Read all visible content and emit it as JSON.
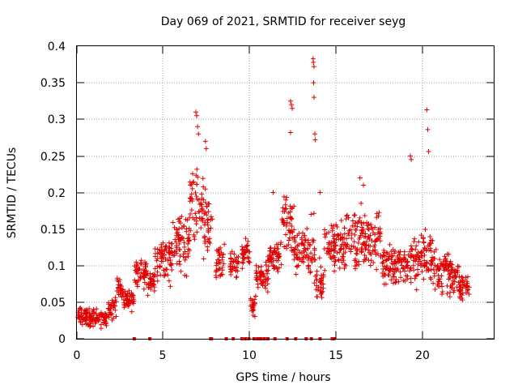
{
  "chart_data": {
    "type": "scatter",
    "title": "Day 069 of 2021, SRMTID for receiver seyg",
    "xlabel": "GPS time / hours",
    "ylabel": "SRMTID / TECUs",
    "xlim": [
      0,
      24
    ],
    "ylim": [
      0,
      0.4
    ],
    "xticks": [
      "0",
      "5",
      "10",
      "15",
      "20"
    ],
    "xtick_values": [
      0,
      5,
      10,
      15,
      20
    ],
    "yticks": [
      "0",
      "0.05",
      "0.1",
      "0.15",
      "0.2",
      "0.25",
      "0.3",
      "0.35",
      "0.4"
    ],
    "ytick_values": [
      0,
      0.05,
      0.1,
      0.15,
      0.2,
      0.25,
      0.3,
      0.35,
      0.4
    ],
    "grid": true,
    "marker": "plus",
    "color": "#e00000",
    "bands": [
      {
        "x0": 0.05,
        "x1": 1.8,
        "lo": 0.012,
        "hi": 0.045
      },
      {
        "x0": 1.8,
        "x1": 2.3,
        "lo": 0.02,
        "hi": 0.06
      },
      {
        "x0": 2.3,
        "x1": 2.7,
        "lo": 0.045,
        "hi": 0.09
      },
      {
        "x0": 2.7,
        "x1": 3.3,
        "lo": 0.035,
        "hi": 0.07
      },
      {
        "x0": 3.3,
        "x1": 4.0,
        "lo": 0.06,
        "hi": 0.12
      },
      {
        "x0": 4.0,
        "x1": 4.5,
        "lo": 0.055,
        "hi": 0.1
      },
      {
        "x0": 4.5,
        "x1": 5.5,
        "lo": 0.07,
        "hi": 0.145
      },
      {
        "x0": 5.5,
        "x1": 6.5,
        "lo": 0.08,
        "hi": 0.19
      },
      {
        "x0": 6.5,
        "x1": 7.3,
        "lo": 0.1,
        "hi": 0.27
      },
      {
        "x0": 7.3,
        "x1": 7.8,
        "lo": 0.09,
        "hi": 0.22
      },
      {
        "x0": 8.0,
        "x1": 8.5,
        "lo": 0.07,
        "hi": 0.14
      },
      {
        "x0": 8.8,
        "x1": 9.3,
        "lo": 0.08,
        "hi": 0.125
      },
      {
        "x0": 9.5,
        "x1": 10.0,
        "lo": 0.09,
        "hi": 0.145
      },
      {
        "x0": 10.0,
        "x1": 10.3,
        "lo": 0.02,
        "hi": 0.07
      },
      {
        "x0": 10.3,
        "x1": 11.0,
        "lo": 0.06,
        "hi": 0.11
      },
      {
        "x0": 11.0,
        "x1": 11.8,
        "lo": 0.08,
        "hi": 0.14
      },
      {
        "x0": 11.8,
        "x1": 12.5,
        "lo": 0.09,
        "hi": 0.22
      },
      {
        "x0": 12.5,
        "x1": 13.3,
        "lo": 0.08,
        "hi": 0.17
      },
      {
        "x0": 13.3,
        "x1": 13.7,
        "lo": 0.06,
        "hi": 0.18
      },
      {
        "x0": 13.7,
        "x1": 14.2,
        "lo": 0.04,
        "hi": 0.12
      },
      {
        "x0": 14.2,
        "x1": 15.5,
        "lo": 0.08,
        "hi": 0.17
      },
      {
        "x0": 15.5,
        "x1": 17.5,
        "lo": 0.08,
        "hi": 0.19
      },
      {
        "x0": 17.5,
        "x1": 19.0,
        "lo": 0.06,
        "hi": 0.14
      },
      {
        "x0": 19.0,
        "x1": 20.5,
        "lo": 0.055,
        "hi": 0.16
      },
      {
        "x0": 20.5,
        "x1": 22.0,
        "lo": 0.05,
        "hi": 0.13
      },
      {
        "x0": 22.0,
        "x1": 22.6,
        "lo": 0.04,
        "hi": 0.1
      }
    ],
    "spikes": [
      [
        6.85,
        0.31
      ],
      [
        6.9,
        0.305
      ],
      [
        6.95,
        0.29
      ],
      [
        7.0,
        0.28
      ],
      [
        7.4,
        0.27
      ],
      [
        7.45,
        0.26
      ],
      [
        12.3,
        0.325
      ],
      [
        12.35,
        0.32
      ],
      [
        12.4,
        0.315
      ],
      [
        12.3,
        0.282
      ],
      [
        13.6,
        0.383
      ],
      [
        13.62,
        0.378
      ],
      [
        13.65,
        0.372
      ],
      [
        13.63,
        0.35
      ],
      [
        13.65,
        0.33
      ],
      [
        13.7,
        0.28
      ],
      [
        13.72,
        0.272
      ],
      [
        11.3,
        0.2
      ],
      [
        14.0,
        0.2
      ],
      [
        16.3,
        0.22
      ],
      [
        16.5,
        0.21
      ],
      [
        19.2,
        0.25
      ],
      [
        19.25,
        0.245
      ],
      [
        20.15,
        0.313
      ],
      [
        20.2,
        0.286
      ],
      [
        20.25,
        0.256
      ]
    ],
    "zero_markers": [
      3.3,
      4.2,
      7.7,
      7.75,
      8.6,
      9.0,
      9.5,
      9.7,
      9.9,
      10.2,
      10.4,
      10.5,
      10.6,
      10.8,
      11.0,
      11.4,
      12.1,
      12.6,
      13.2,
      13.5,
      14.0,
      14.7,
      14.8
    ]
  }
}
